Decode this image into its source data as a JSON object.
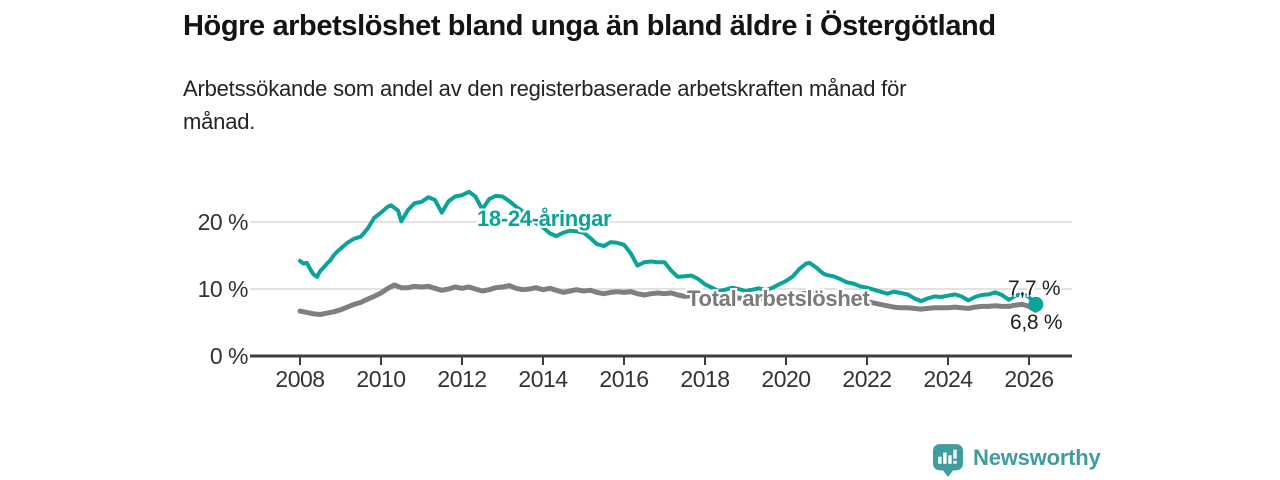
{
  "footer": {
    "brand": "Newsworthy",
    "brand_color": "#3f9d9e"
  },
  "chart_data": {
    "type": "line",
    "title": "Högre arbetslöshet bland unga än bland äldre i Östergötland",
    "subtitle_line1": "Arbetssökande som andel av den registerbaserade arbetskraften månad för",
    "subtitle_line2": "månad.",
    "unit": "%",
    "grid": "horizontal",
    "legend_position": "inline-labels",
    "x_range": [
      2008,
      2026.2
    ],
    "ylim": [
      0,
      26
    ],
    "colors": {
      "young": "#0aa397",
      "total": "#7f7f7f",
      "gridline": "#d9d9d9",
      "axis": "#3d3d3d"
    },
    "y_ticks": [
      {
        "value": 0,
        "label": "0 %"
      },
      {
        "value": 10,
        "label": "10 %"
      },
      {
        "value": 20,
        "label": "20 %"
      }
    ],
    "x_ticks": [
      {
        "value": 2008,
        "label": "2008"
      },
      {
        "value": 2010,
        "label": "2010"
      },
      {
        "value": 2012,
        "label": "2012"
      },
      {
        "value": 2014,
        "label": "2014"
      },
      {
        "value": 2016,
        "label": "2016"
      },
      {
        "value": 2018,
        "label": "2018"
      },
      {
        "value": 2020,
        "label": "2020"
      },
      {
        "value": 2022,
        "label": "2022"
      },
      {
        "value": 2024,
        "label": "2024"
      },
      {
        "value": 2026,
        "label": "2026"
      }
    ],
    "series": [
      {
        "name": "Total arbetslöshet",
        "color": "#7f7f7f",
        "line_width": 5,
        "end_value": 6.8,
        "end_label": "6,8 %",
        "points": [
          [
            2008.0,
            6.7
          ],
          [
            2008.17,
            6.5
          ],
          [
            2008.33,
            6.3
          ],
          [
            2008.5,
            6.2
          ],
          [
            2008.67,
            6.4
          ],
          [
            2008.83,
            6.6
          ],
          [
            2009.0,
            6.9
          ],
          [
            2009.17,
            7.3
          ],
          [
            2009.33,
            7.7
          ],
          [
            2009.5,
            8.0
          ],
          [
            2009.67,
            8.5
          ],
          [
            2009.83,
            8.9
          ],
          [
            2010.0,
            9.4
          ],
          [
            2010.17,
            10.1
          ],
          [
            2010.33,
            10.6
          ],
          [
            2010.5,
            10.2
          ],
          [
            2010.67,
            10.2
          ],
          [
            2010.83,
            10.4
          ],
          [
            2011.0,
            10.3
          ],
          [
            2011.17,
            10.4
          ],
          [
            2011.33,
            10.1
          ],
          [
            2011.5,
            9.8
          ],
          [
            2011.67,
            10.0
          ],
          [
            2011.83,
            10.3
          ],
          [
            2012.0,
            10.1
          ],
          [
            2012.17,
            10.3
          ],
          [
            2012.33,
            10.0
          ],
          [
            2012.5,
            9.7
          ],
          [
            2012.67,
            9.9
          ],
          [
            2012.83,
            10.2
          ],
          [
            2013.0,
            10.3
          ],
          [
            2013.17,
            10.5
          ],
          [
            2013.33,
            10.1
          ],
          [
            2013.5,
            9.9
          ],
          [
            2013.67,
            10.0
          ],
          [
            2013.83,
            10.2
          ],
          [
            2014.0,
            9.9
          ],
          [
            2014.17,
            10.1
          ],
          [
            2014.33,
            9.8
          ],
          [
            2014.5,
            9.5
          ],
          [
            2014.67,
            9.7
          ],
          [
            2014.83,
            9.9
          ],
          [
            2015.0,
            9.7
          ],
          [
            2015.17,
            9.8
          ],
          [
            2015.33,
            9.5
          ],
          [
            2015.5,
            9.3
          ],
          [
            2015.67,
            9.5
          ],
          [
            2015.83,
            9.6
          ],
          [
            2016.0,
            9.5
          ],
          [
            2016.17,
            9.6
          ],
          [
            2016.33,
            9.3
          ],
          [
            2016.5,
            9.1
          ],
          [
            2016.67,
            9.3
          ],
          [
            2016.83,
            9.4
          ],
          [
            2017.0,
            9.3
          ],
          [
            2017.17,
            9.4
          ],
          [
            2017.33,
            9.1
          ],
          [
            2017.5,
            8.9
          ],
          [
            2017.67,
            9.0
          ],
          [
            2017.83,
            8.9
          ],
          [
            2018.0,
            8.9
          ],
          [
            2018.33,
            8.8
          ],
          [
            2018.67,
            8.7
          ],
          [
            2019.0,
            8.6
          ],
          [
            2019.33,
            8.5
          ],
          [
            2019.67,
            8.6
          ],
          [
            2020.0,
            8.7
          ],
          [
            2020.33,
            9.2
          ],
          [
            2020.58,
            9.4
          ],
          [
            2020.83,
            9.2
          ],
          [
            2021.0,
            9.0
          ],
          [
            2021.33,
            8.7
          ],
          [
            2021.67,
            8.4
          ],
          [
            2022.0,
            8.1
          ],
          [
            2022.17,
            7.9
          ],
          [
            2022.33,
            7.7
          ],
          [
            2022.5,
            7.5
          ],
          [
            2022.67,
            7.3
          ],
          [
            2022.83,
            7.2
          ],
          [
            2023.0,
            7.2
          ],
          [
            2023.17,
            7.1
          ],
          [
            2023.33,
            7.0
          ],
          [
            2023.5,
            7.1
          ],
          [
            2023.67,
            7.2
          ],
          [
            2023.83,
            7.2
          ],
          [
            2024.0,
            7.2
          ],
          [
            2024.17,
            7.3
          ],
          [
            2024.33,
            7.2
          ],
          [
            2024.5,
            7.1
          ],
          [
            2024.67,
            7.3
          ],
          [
            2024.83,
            7.4
          ],
          [
            2025.0,
            7.4
          ],
          [
            2025.17,
            7.5
          ],
          [
            2025.33,
            7.4
          ],
          [
            2025.5,
            7.4
          ],
          [
            2025.67,
            7.6
          ],
          [
            2025.83,
            7.7
          ],
          [
            2026.0,
            7.4
          ],
          [
            2026.17,
            6.8
          ]
        ]
      },
      {
        "name": "18-24-åringar",
        "color": "#0aa397",
        "line_width": 4,
        "end_value": 7.7,
        "end_label": "7,7 %",
        "end_marker": true,
        "points": [
          [
            2008.0,
            14.2
          ],
          [
            2008.08,
            13.8
          ],
          [
            2008.17,
            13.9
          ],
          [
            2008.25,
            13.0
          ],
          [
            2008.33,
            12.2
          ],
          [
            2008.42,
            11.8
          ],
          [
            2008.5,
            12.7
          ],
          [
            2008.58,
            13.2
          ],
          [
            2008.67,
            13.8
          ],
          [
            2008.75,
            14.3
          ],
          [
            2008.83,
            15.0
          ],
          [
            2008.92,
            15.6
          ],
          [
            2009.0,
            16.0
          ],
          [
            2009.17,
            16.9
          ],
          [
            2009.33,
            17.5
          ],
          [
            2009.5,
            17.8
          ],
          [
            2009.67,
            19.0
          ],
          [
            2009.83,
            20.6
          ],
          [
            2010.0,
            21.4
          ],
          [
            2010.17,
            22.3
          ],
          [
            2010.25,
            22.5
          ],
          [
            2010.42,
            21.7
          ],
          [
            2010.5,
            20.1
          ],
          [
            2010.67,
            21.8
          ],
          [
            2010.83,
            22.8
          ],
          [
            2011.0,
            23.0
          ],
          [
            2011.17,
            23.7
          ],
          [
            2011.33,
            23.3
          ],
          [
            2011.5,
            21.4
          ],
          [
            2011.67,
            23.1
          ],
          [
            2011.83,
            23.8
          ],
          [
            2012.0,
            24.0
          ],
          [
            2012.17,
            24.5
          ],
          [
            2012.33,
            23.8
          ],
          [
            2012.5,
            21.9
          ],
          [
            2012.67,
            23.4
          ],
          [
            2012.83,
            23.9
          ],
          [
            2013.0,
            23.8
          ],
          [
            2013.17,
            23.1
          ],
          [
            2013.33,
            22.3
          ],
          [
            2013.5,
            21.6
          ],
          [
            2013.67,
            20.6
          ],
          [
            2013.83,
            19.8
          ],
          [
            2014.0,
            19.2
          ],
          [
            2014.17,
            18.3
          ],
          [
            2014.33,
            17.9
          ],
          [
            2014.5,
            18.4
          ],
          [
            2014.67,
            18.7
          ],
          [
            2014.83,
            18.6
          ],
          [
            2015.0,
            18.4
          ],
          [
            2015.17,
            17.6
          ],
          [
            2015.33,
            16.7
          ],
          [
            2015.5,
            16.4
          ],
          [
            2015.67,
            17.0
          ],
          [
            2015.83,
            16.9
          ],
          [
            2016.0,
            16.6
          ],
          [
            2016.17,
            15.3
          ],
          [
            2016.33,
            13.5
          ],
          [
            2016.5,
            14.0
          ],
          [
            2016.67,
            14.1
          ],
          [
            2016.83,
            14.0
          ],
          [
            2017.0,
            14.0
          ],
          [
            2017.17,
            12.7
          ],
          [
            2017.33,
            11.8
          ],
          [
            2017.5,
            11.9
          ],
          [
            2017.67,
            12.0
          ],
          [
            2017.83,
            11.5
          ],
          [
            2018.0,
            10.7
          ],
          [
            2018.17,
            10.2
          ],
          [
            2018.33,
            9.7
          ],
          [
            2018.5,
            9.9
          ],
          [
            2018.67,
            10.2
          ],
          [
            2018.83,
            10.0
          ],
          [
            2019.0,
            9.7
          ],
          [
            2019.17,
            9.9
          ],
          [
            2019.33,
            10.1
          ],
          [
            2019.5,
            9.8
          ],
          [
            2019.67,
            10.2
          ],
          [
            2019.83,
            10.7
          ],
          [
            2020.0,
            11.2
          ],
          [
            2020.17,
            11.9
          ],
          [
            2020.33,
            13.0
          ],
          [
            2020.5,
            13.8
          ],
          [
            2020.58,
            13.9
          ],
          [
            2020.75,
            13.2
          ],
          [
            2020.92,
            12.3
          ],
          [
            2021.0,
            12.1
          ],
          [
            2021.17,
            11.9
          ],
          [
            2021.33,
            11.5
          ],
          [
            2021.5,
            11.0
          ],
          [
            2021.67,
            10.8
          ],
          [
            2021.83,
            10.4
          ],
          [
            2022.0,
            10.2
          ],
          [
            2022.17,
            9.9
          ],
          [
            2022.33,
            9.6
          ],
          [
            2022.5,
            9.3
          ],
          [
            2022.67,
            9.6
          ],
          [
            2022.83,
            9.4
          ],
          [
            2023.0,
            9.2
          ],
          [
            2023.17,
            8.6
          ],
          [
            2023.33,
            8.2
          ],
          [
            2023.5,
            8.6
          ],
          [
            2023.67,
            8.9
          ],
          [
            2023.83,
            8.8
          ],
          [
            2024.0,
            9.0
          ],
          [
            2024.17,
            9.2
          ],
          [
            2024.33,
            8.9
          ],
          [
            2024.5,
            8.3
          ],
          [
            2024.67,
            8.8
          ],
          [
            2024.83,
            9.1
          ],
          [
            2025.0,
            9.2
          ],
          [
            2025.17,
            9.5
          ],
          [
            2025.33,
            9.1
          ],
          [
            2025.5,
            8.4
          ],
          [
            2025.67,
            9.0
          ],
          [
            2025.83,
            9.3
          ],
          [
            2026.0,
            8.8
          ],
          [
            2026.17,
            7.7
          ]
        ]
      }
    ]
  }
}
